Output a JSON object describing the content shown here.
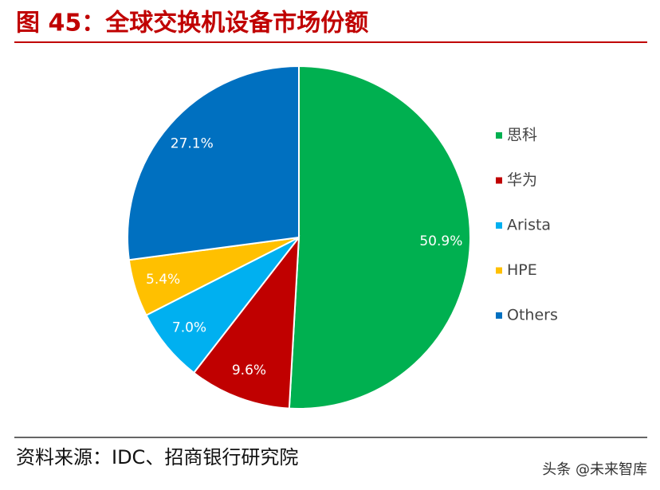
{
  "chart_data": {
    "type": "pie",
    "title": "图 45：全球交换机设备市场份额",
    "categories": [
      "思科",
      "华为",
      "Arista",
      "HPE",
      "Others"
    ],
    "values": [
      50.9,
      9.6,
      7.0,
      5.4,
      27.1
    ],
    "value_labels": [
      "50.9%",
      "9.6%",
      "7.0%",
      "5.4%",
      "27.1%"
    ],
    "colors": [
      "#00b050",
      "#c00000",
      "#00b0f0",
      "#ffc000",
      "#0070c0"
    ],
    "legend": "right"
  },
  "source": "资料来源：IDC、招商银行研究院",
  "watermark": "头条 @未来智库"
}
